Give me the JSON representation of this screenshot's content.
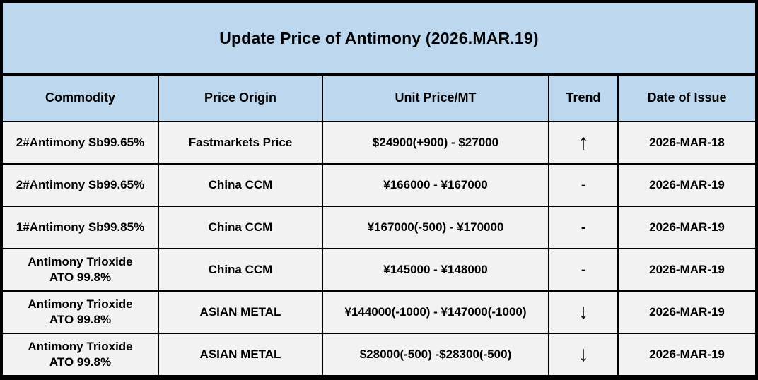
{
  "title": "Update Price of Antimony (2026.MAR.19)",
  "colors": {
    "header_bg": "#bdd7ee",
    "row_bg": "#f2f2f2",
    "border": "#000000",
    "text": "#000000"
  },
  "icons": {
    "trend_up": "↑",
    "trend_down": "↓",
    "trend_flat": "-"
  },
  "table": {
    "headers": [
      "Commodity",
      "Price Origin",
      "Unit Price/MT",
      "Trend",
      "Date of Issue"
    ],
    "rows": [
      {
        "commodity": "2#Antimony  Sb99.65%",
        "origin": "Fastmarkets Price",
        "price": "$24900(+900) - $27000",
        "trend": "↑",
        "date": "2026-MAR-18"
      },
      {
        "commodity": "2#Antimony  Sb99.65%",
        "origin": "China CCM",
        "price": "¥166000 - ¥167000",
        "trend": "-",
        "date": "2026-MAR-19"
      },
      {
        "commodity": "1#Antimony  Sb99.85%",
        "origin": "China CCM",
        "price": "¥167000(-500) - ¥170000",
        "trend": "-",
        "date": "2026-MAR-19"
      },
      {
        "commodity": "Antimony Trioxide\nATO 99.8%",
        "origin": "China CCM",
        "price": "¥145000 - ¥148000",
        "trend": "-",
        "date": "2026-MAR-19"
      },
      {
        "commodity": "Antimony Trioxide\nATO 99.8%",
        "origin": "ASIAN METAL",
        "price": "¥144000(-1000) - ¥147000(-1000)",
        "trend": "↓",
        "date": "2026-MAR-19"
      },
      {
        "commodity": "Antimony Trioxide\nATO 99.8%",
        "origin": "ASIAN METAL",
        "price": "$28000(-500) -$28300(-500)",
        "trend": "↓",
        "date": "2026-MAR-19"
      }
    ]
  }
}
